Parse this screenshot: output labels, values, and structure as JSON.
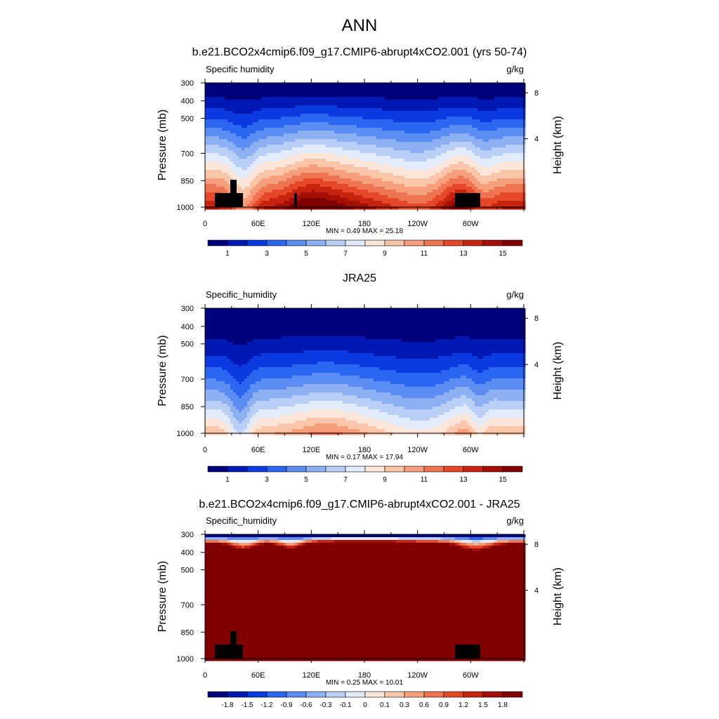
{
  "figure_title": "ANN",
  "colors": {
    "background": "#ffffff",
    "axis": "#000000",
    "land_mask": "#000000"
  },
  "chart_data": [
    {
      "type": "heatmap",
      "title": "b.e21.BCO2x4cmip6.f09_g17.CMIP6-abrupt4xCO2.001 (yrs 50-74)",
      "left_label": "Specific humidity",
      "right_label": "g/kg",
      "ylabel": "Pressure (mb)",
      "ylabel_right": "Height (km)",
      "x_ticks": [
        "0",
        "60E",
        "120E",
        "180",
        "120W",
        "60W"
      ],
      "y_ticks": [
        "300",
        "400",
        "500",
        "700",
        "850",
        "1000"
      ],
      "y_ticks_right": [
        "8",
        "4"
      ],
      "min_max_text": "MIN =   0.49  MAX =  25.18",
      "colorbar_labels": [
        "1",
        "3",
        "5",
        "7",
        "9",
        "11",
        "13",
        "15"
      ],
      "colorbar_levels": [
        0,
        1,
        2,
        3,
        4,
        5,
        6,
        7,
        8,
        9,
        10,
        11,
        12,
        13,
        14,
        15
      ],
      "colorbar_scheme": "blue-white-red",
      "land_mask": true
    },
    {
      "type": "heatmap",
      "title": "JRA25",
      "left_label": "Specific_humidity",
      "right_label": "g/kg",
      "ylabel": "Pressure (mb)",
      "ylabel_right": "Height (km)",
      "x_ticks": [
        "0",
        "60E",
        "120E",
        "180",
        "120W",
        "60W"
      ],
      "y_ticks": [
        "300",
        "400",
        "500",
        "700",
        "850",
        "1000"
      ],
      "y_ticks_right": [
        "8",
        "4"
      ],
      "min_max_text": "MIN =   0.17  MAX =  17.94",
      "colorbar_labels": [
        "1",
        "3",
        "5",
        "7",
        "9",
        "11",
        "13",
        "15"
      ],
      "colorbar_levels": [
        0,
        1,
        2,
        3,
        4,
        5,
        6,
        7,
        8,
        9,
        10,
        11,
        12,
        13,
        14,
        15
      ],
      "colorbar_scheme": "blue-white-red",
      "land_mask": false
    },
    {
      "type": "heatmap",
      "title": "b.e21.BCO2x4cmip6.f09_g17.CMIP6-abrupt4xCO2.001 - JRA25",
      "left_label": "Specific_humidity",
      "right_label": "g/kg",
      "ylabel": "Pressure (mb)",
      "ylabel_right": "Height (km)",
      "x_ticks": [
        "0",
        "60E",
        "120E",
        "180",
        "120W",
        "60W"
      ],
      "y_ticks": [
        "300",
        "400",
        "500",
        "700",
        "850",
        "1000"
      ],
      "y_ticks_right": [
        "8",
        "4"
      ],
      "min_max_text": "MIN =   0.25  MAX =  10.01",
      "colorbar_labels": [
        "-1.8",
        "-1.5",
        "-1.2",
        "-0.9",
        "-0.6",
        "-0.3",
        "-0.1",
        "0",
        "0.1",
        "0.3",
        "0.6",
        "0.9",
        "1.2",
        "1.5",
        "1.8"
      ],
      "colorbar_levels": [
        -1.8,
        -1.5,
        -1.2,
        -0.9,
        -0.6,
        -0.3,
        -0.1,
        0,
        0.1,
        0.3,
        0.6,
        0.9,
        1.2,
        1.5,
        1.8
      ],
      "colorbar_scheme": "blue-white-red",
      "land_mask": true
    }
  ]
}
